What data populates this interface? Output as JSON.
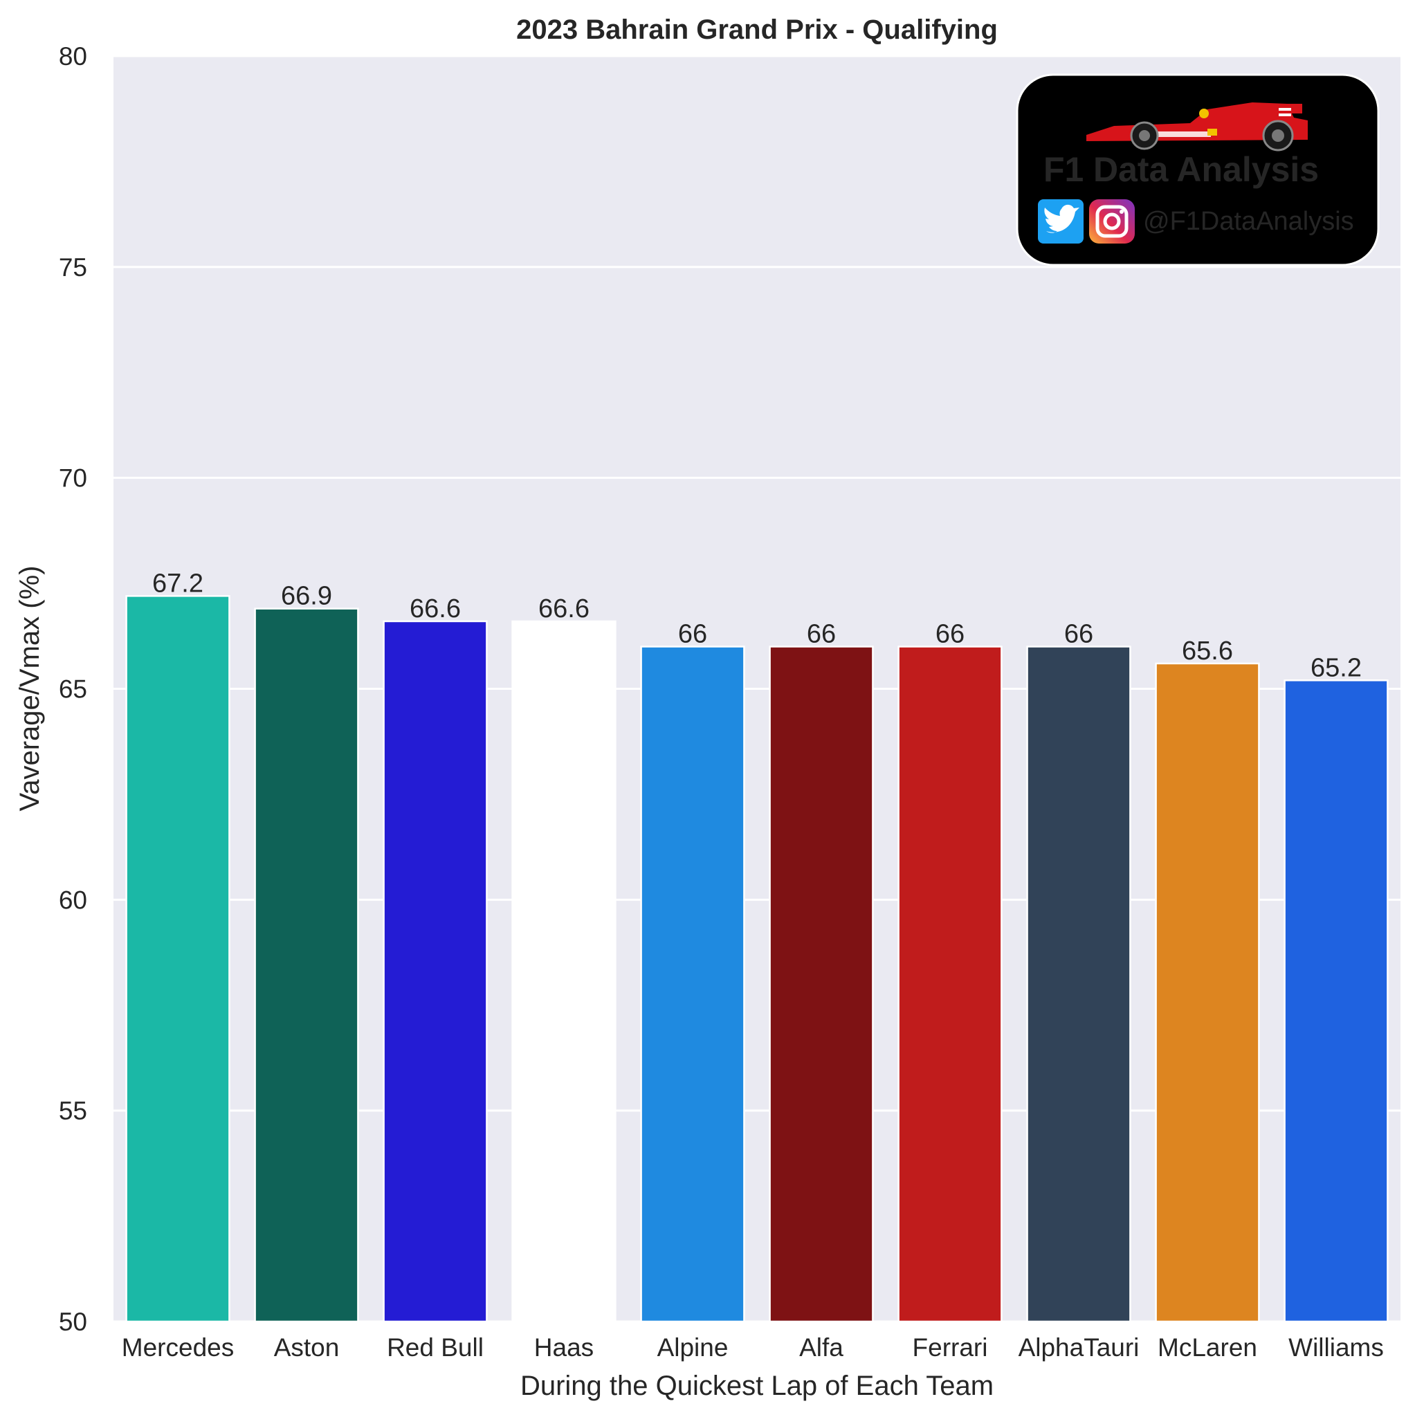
{
  "chart_data": {
    "type": "bar",
    "title": "2023 Bahrain Grand Prix - Qualifying",
    "xlabel": "During the Quickest Lap of Each Team",
    "ylabel": "Vaverage/Vmax (%)",
    "ylim": [
      50,
      80
    ],
    "yticks": [
      50,
      55,
      60,
      65,
      70,
      75,
      80
    ],
    "grid": true,
    "categories": [
      "Mercedes",
      "Aston",
      "Red Bull",
      "Haas",
      "Alpine",
      "Alfa",
      "Ferrari",
      "AlphaTauri",
      "McLaren",
      "Williams"
    ],
    "values": [
      67.2,
      66.9,
      66.6,
      66.6,
      66,
      66,
      66,
      66,
      65.6,
      65.2
    ],
    "data_labels": [
      "67.2",
      "66.9",
      "66.6",
      "66.6",
      "66",
      "66",
      "66",
      "66",
      "65.6",
      "65.2"
    ],
    "colors": [
      "#1BB8A6",
      "#0F6257",
      "#241CD4",
      "#FFFFFF",
      "#1F8AE0",
      "#7E1214",
      "#C01C1C",
      "#314358",
      "#DD8520",
      "#1F62E0"
    ]
  },
  "watermark": {
    "brand_prefix": "F1",
    "brand_name": "Data Analysis",
    "handle": "@F1DataAnalysis",
    "icons": [
      "twitter-icon",
      "instagram-icon",
      "f1-car-icon"
    ],
    "background": "#000000",
    "accent": "#E10600"
  },
  "theme": {
    "plot_background": "#EAEAF2",
    "grid_color": "#FFFFFF"
  }
}
